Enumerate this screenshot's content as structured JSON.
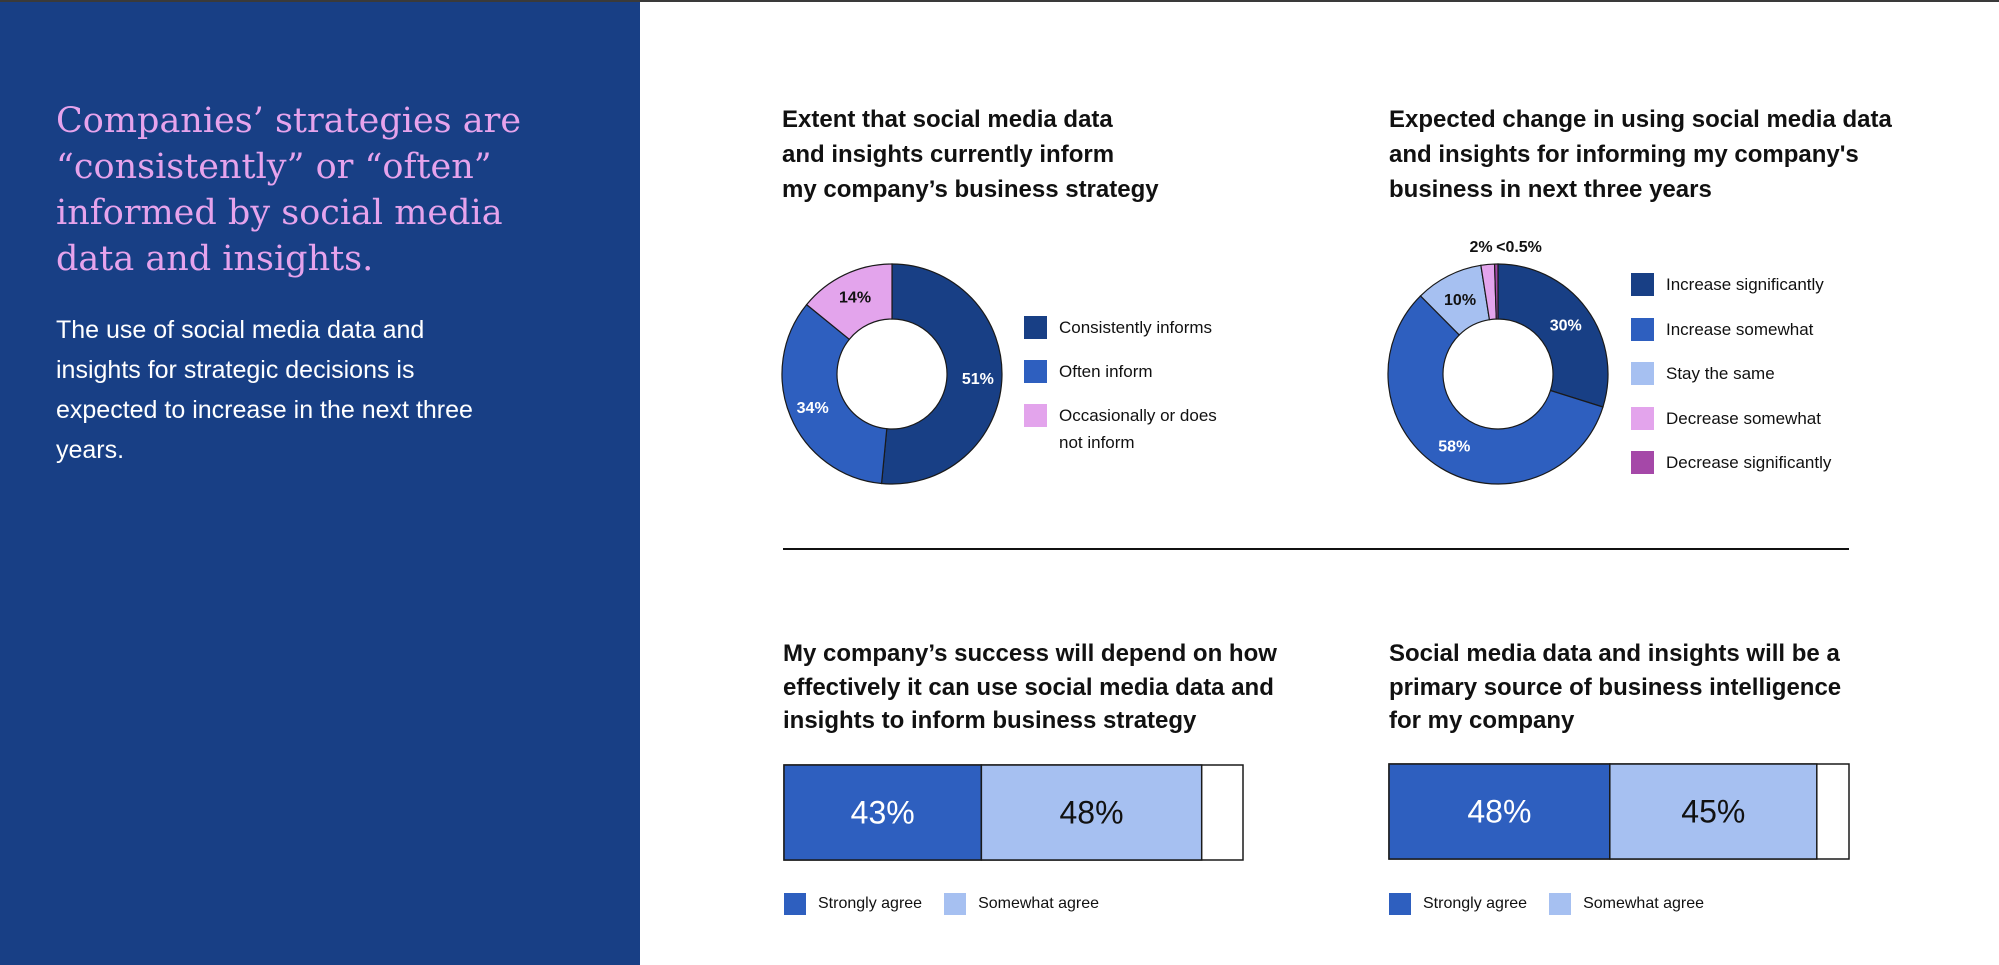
{
  "sidebar": {
    "headline": "Companies’ strategies are “consistently” or “often” informed by social media data and insights.",
    "body": "The use of social media data and insights for strategic decisions is expected to increase in the next three years."
  },
  "colors": {
    "sidebar_bg": "#183f85",
    "headline": "#e6a3ec",
    "dark_blue": "#183f85",
    "mid_blue": "#2e5fbf",
    "light_blue": "#a6c0f1",
    "light_pink": "#e3a4ec",
    "purple": "#a548a8"
  },
  "chart_data": [
    {
      "type": "pie",
      "title": "Extent that social media data and insights currently inform my company’s business strategy",
      "title_lines": [
        "Extent that social media data",
        "and insights currently inform",
        "my company’s business strategy"
      ],
      "series": [
        {
          "name": "Consistently informs",
          "value": 51,
          "label": "51%",
          "color": "#183f85",
          "label_color": "#ffffff"
        },
        {
          "name": "Often inform",
          "value": 34,
          "label": "34%",
          "color": "#2e5fbf",
          "label_color": "#ffffff"
        },
        {
          "name": "Occasionally or does not inform",
          "value": 14,
          "label": "14%",
          "color": "#e3a4ec",
          "label_color": "#111111"
        }
      ]
    },
    {
      "type": "pie",
      "title": "Expected change in using social media data and insights for informing my company's business in next three years",
      "title_lines": [
        "Expected change in using social media data",
        "and insights for informing my company's",
        "business in next three years"
      ],
      "series": [
        {
          "name": "Increase significantly",
          "value": 30,
          "label": "30%",
          "color": "#183f85",
          "label_color": "#ffffff"
        },
        {
          "name": "Increase somewhat",
          "value": 58,
          "label": "58%",
          "color": "#2e5fbf",
          "label_color": "#ffffff"
        },
        {
          "name": "Stay the same",
          "value": 10,
          "label": "10%",
          "color": "#a6c0f1",
          "label_color": "#111111"
        },
        {
          "name": "Decrease somewhat",
          "value": 2,
          "label": "2%",
          "color": "#e3a4ec",
          "label_color": "#111111"
        },
        {
          "name": "Decrease significantly",
          "value": 0.5,
          "label": "<0.5%",
          "color": "#a548a8",
          "label_color": "#111111"
        }
      ]
    },
    {
      "type": "bar",
      "orientation": "horizontal-stacked",
      "title": "My company’s success will depend on how effectively it can use social media data and insights to inform business strategy",
      "title_lines": [
        "My company’s success will depend on how",
        "effectively it can use social media data and",
        "insights to inform business strategy"
      ],
      "series": [
        {
          "name": "Strongly agree",
          "value": 43,
          "label": "43%",
          "color": "#2e5fbf",
          "label_color": "#ffffff"
        },
        {
          "name": "Somewhat agree",
          "value": 48,
          "label": "48%",
          "color": "#a6c0f1",
          "label_color": "#111111"
        }
      ]
    },
    {
      "type": "bar",
      "orientation": "horizontal-stacked",
      "title": "Social media data and insights will be a primary source of business intelligence for my company",
      "title_lines": [
        "Social media data and insights will be a",
        "primary source of business intelligence",
        "for my company"
      ],
      "series": [
        {
          "name": "Strongly agree",
          "value": 48,
          "label": "48%",
          "color": "#2e5fbf",
          "label_color": "#ffffff"
        },
        {
          "name": "Somewhat agree",
          "value": 45,
          "label": "45%",
          "color": "#a6c0f1",
          "label_color": "#111111"
        }
      ]
    }
  ]
}
